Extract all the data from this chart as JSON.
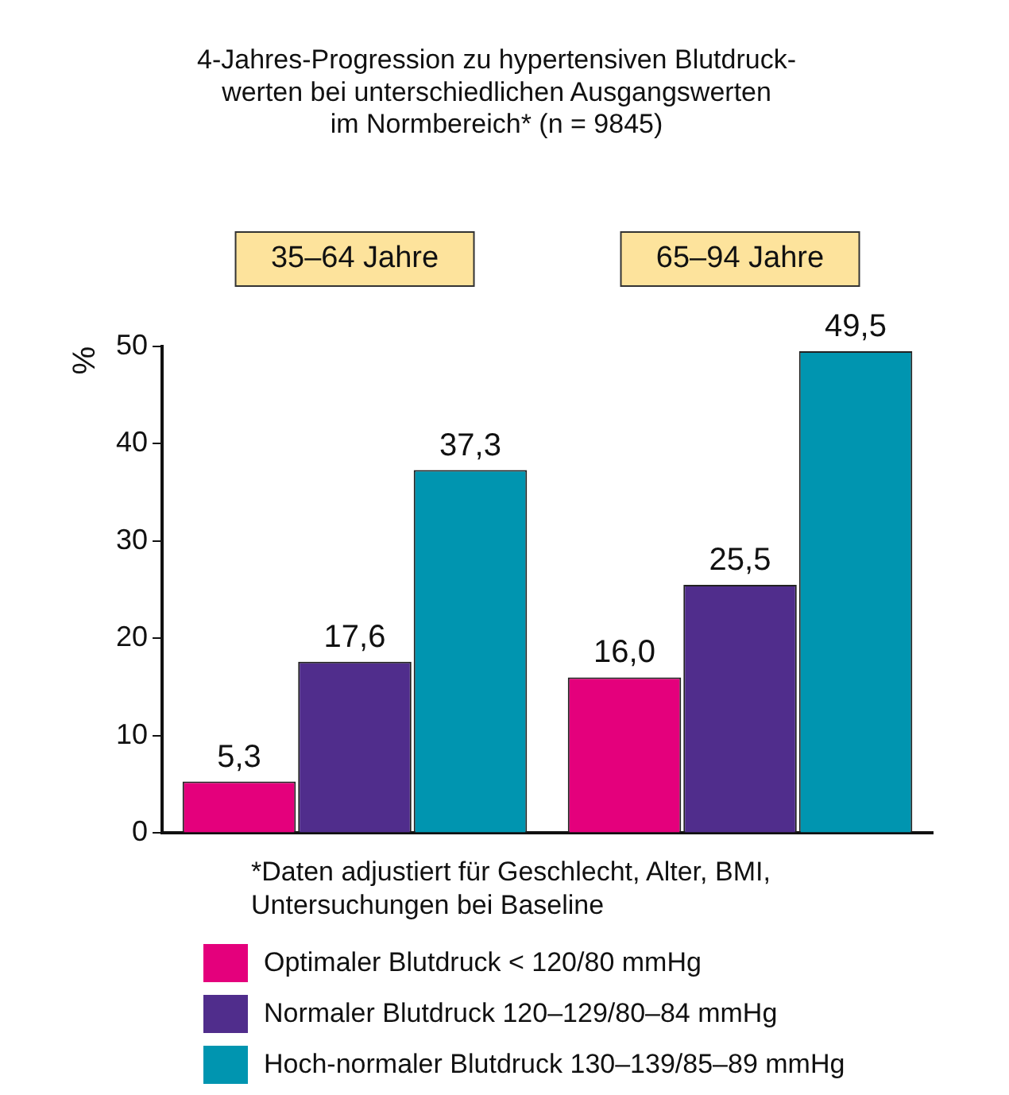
{
  "chart_data": {
    "type": "bar",
    "title": "4-Jahres-Progression zu hypertensiven Blutdruck-\nwerten bei unterschiedlichen Ausgangswerten\nim Normbereich* (n = 9845)",
    "ylabel": "%",
    "categories": [
      "35–64 Jahre",
      "65–94 Jahre"
    ],
    "series": [
      {
        "name": "Optimaler Blutdruck < 120/80 mmHg",
        "color": "#e4007c",
        "values": [
          5.3,
          16.0
        ],
        "value_labels": [
          "5,3",
          "16,0"
        ]
      },
      {
        "name": "Normaler Blutdruck 120–129/80–84 mmHg",
        "color": "#502d8c",
        "values": [
          17.6,
          25.5
        ],
        "value_labels": [
          "17,6",
          "25,5"
        ]
      },
      {
        "name": "Hoch-normaler Blutdruck 130–139/85–89 mmHg",
        "color": "#0095b0",
        "values": [
          37.3,
          49.5
        ],
        "value_labels": [
          "37,3",
          "49,5"
        ]
      }
    ],
    "ylim": [
      0,
      50
    ],
    "yticks": [
      0,
      10,
      20,
      30,
      40,
      50
    ],
    "grid": false,
    "legend": "bottom",
    "annotations": [
      "*Daten adjustiert für Geschlecht, Alter, BMI,\nUntersuchungen bei Baseline"
    ]
  }
}
